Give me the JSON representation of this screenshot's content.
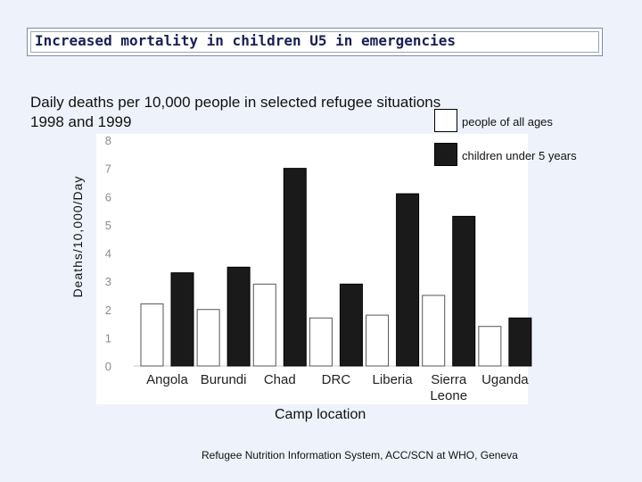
{
  "slide": {
    "title": "Increased mortality in children U5 in emergencies",
    "subtitle": "Daily deaths per 10,000 people in selected refugee situations 1998 and 1999",
    "source": "Refugee Nutrition Information System, ACC/SCN at WHO, Geneva"
  },
  "chart_data": {
    "type": "bar",
    "categories": [
      "Angola",
      "Burundi",
      "Chad",
      "DRC",
      "Liberia",
      "Sierra Leone",
      "Uganda"
    ],
    "category_lines": [
      [
        "Angola"
      ],
      [
        "Burundi"
      ],
      [
        "Chad"
      ],
      [
        "DRC"
      ],
      [
        "Liberia"
      ],
      [
        "Sierra",
        "Leone"
      ],
      [
        "Uganda"
      ]
    ],
    "series": [
      {
        "name": "people of all ages",
        "values": [
          2.2,
          2.0,
          2.9,
          1.7,
          1.8,
          2.5,
          1.4
        ],
        "color": "#ffffff"
      },
      {
        "name": "children under 5 years",
        "values": [
          3.3,
          3.5,
          7.0,
          2.9,
          6.1,
          5.3,
          1.7
        ],
        "color": "#1a1a1a"
      }
    ],
    "xlabel": "Camp location",
    "ylabel": "Deaths/10,000/Day",
    "ylim": [
      0,
      8
    ],
    "yticks": [
      0,
      1,
      2,
      3,
      4,
      5,
      6,
      7,
      8
    ],
    "grid": false,
    "legend_position": "top-right"
  },
  "colors": {
    "background": "#eef3fb",
    "title_text": "#1a1f55",
    "bar_children": "#1a1a1a",
    "bar_all_ages": "#ffffff",
    "tick_text": "#8a8a8a"
  }
}
